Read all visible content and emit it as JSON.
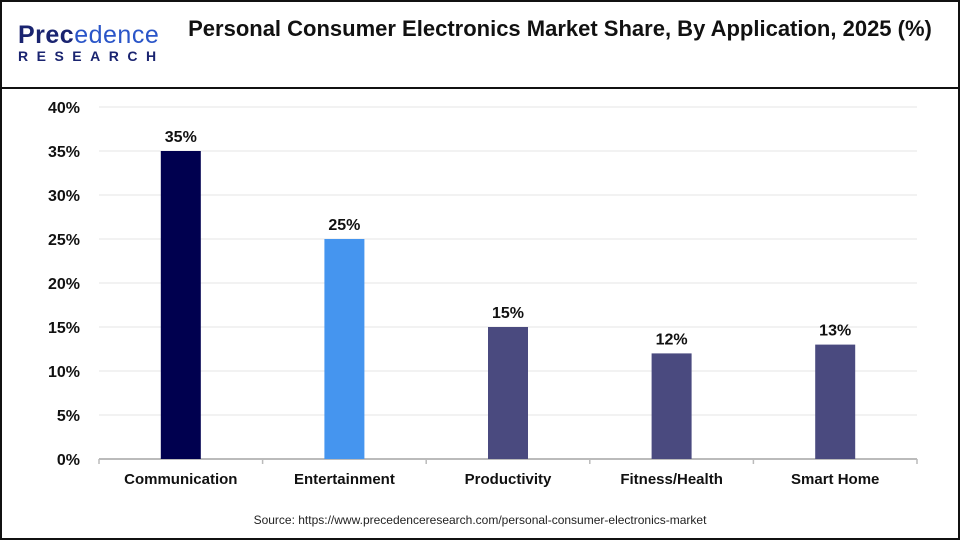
{
  "logo": {
    "text_top": "Precedence",
    "text_bottom": "RESEARCH"
  },
  "title": "Personal Consumer Electronics Market Share, By Application, 2025 (%)",
  "source": "Source: https://www.precedenceresearch.com/personal-consumer-electronics-market",
  "chart_data": {
    "type": "bar",
    "title": "Personal Consumer Electronics Market Share, By Application, 2025 (%)",
    "categories": [
      "Communication",
      "Entertainment",
      "Productivity",
      "Fitness/Health",
      "Smart Home"
    ],
    "values": [
      35,
      25,
      15,
      12,
      13
    ],
    "data_labels": [
      "35%",
      "25%",
      "15%",
      "12%",
      "13%"
    ],
    "colors": [
      "#00004f",
      "#4595ef",
      "#4a4a7f",
      "#4a4a7f",
      "#4a4a7f"
    ],
    "ylim": [
      0,
      40
    ],
    "yticks": [
      "0%",
      "5%",
      "10%",
      "15%",
      "20%",
      "25%",
      "30%",
      "35%",
      "40%"
    ],
    "xlabel": "",
    "ylabel": "",
    "grid": true,
    "legend": "none"
  }
}
